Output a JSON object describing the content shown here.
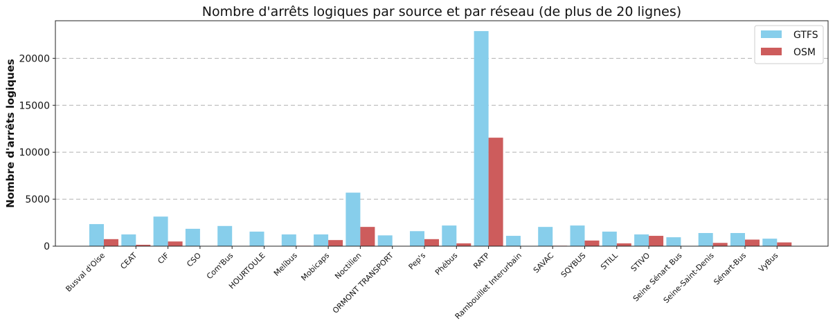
{
  "chart_data": {
    "type": "bar",
    "title": "Nombre d'arrêts logiques par source et par réseau (de plus de 20 lignes)",
    "ylabel": "Nombre d'arrêts logiques",
    "xlabel": "",
    "ylim": [
      0,
      24000
    ],
    "yticks": [
      0,
      5000,
      10000,
      15000,
      20000
    ],
    "grid": "horizontal-dashed",
    "legend_position": "top-right",
    "categories": [
      "Busval d'Oise",
      "CEAT",
      "CIF",
      "CSO",
      "Com'Bus",
      "HOURTOULE",
      "Melíbus",
      "Mobicaps",
      "Noctilien",
      "ORMONT TRANSPORT",
      "Pep's",
      "Phébus",
      "RATP",
      "Rambouillet Interurbain",
      "SAVAC",
      "SQYBUS",
      "STILL",
      "STIVO",
      "Seine Sénart Bus",
      "Seine-Saint-Denis",
      "Sénart-Bus",
      "VyBus"
    ],
    "series": [
      {
        "name": "GTFS",
        "color": "#87ceeb",
        "values": [
          2350,
          1250,
          3150,
          1850,
          2150,
          1550,
          1250,
          1250,
          5700,
          1150,
          1600,
          2200,
          22900,
          1100,
          2050,
          2200,
          1550,
          1250,
          950,
          1400,
          1400,
          800
        ]
      },
      {
        "name": "OSM",
        "color": "#cd5c5c",
        "values": [
          750,
          150,
          500,
          0,
          0,
          0,
          50,
          650,
          2050,
          0,
          750,
          300,
          11550,
          0,
          50,
          600,
          300,
          1100,
          0,
          350,
          700,
          400
        ]
      }
    ]
  }
}
